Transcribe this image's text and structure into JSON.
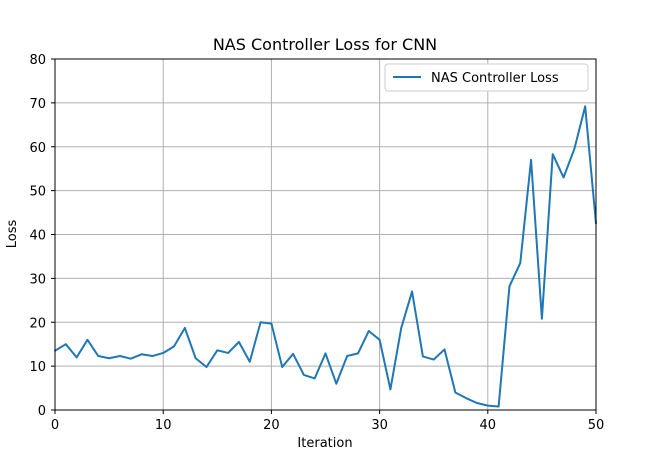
{
  "chart_data": {
    "type": "line",
    "title": "NAS Controller Loss for CNN",
    "xlabel": "Iteration",
    "ylabel": "Loss",
    "xlim": [
      0,
      50
    ],
    "ylim": [
      0,
      80
    ],
    "xticks": [
      0,
      10,
      20,
      30,
      40,
      50
    ],
    "yticks": [
      0,
      10,
      20,
      30,
      40,
      50,
      60,
      70,
      80
    ],
    "grid": true,
    "legend_position": "top-right",
    "series": [
      {
        "name": "NAS Controller Loss",
        "color": "#1f77b4",
        "x": [
          0,
          1,
          2,
          3,
          4,
          5,
          6,
          7,
          8,
          9,
          10,
          11,
          12,
          13,
          14,
          15,
          16,
          17,
          18,
          19,
          20,
          21,
          22,
          23,
          24,
          25,
          26,
          27,
          28,
          29,
          30,
          31,
          32,
          33,
          34,
          35,
          36,
          37,
          38,
          39,
          40,
          41,
          42,
          43,
          44,
          45,
          46,
          47,
          48,
          49,
          50
        ],
        "values": [
          13.5,
          15,
          12,
          16,
          12.3,
          11.8,
          12.3,
          11.7,
          12.7,
          12.3,
          13,
          14.5,
          18.7,
          11.8,
          9.8,
          13.6,
          13,
          15.5,
          11,
          20,
          19.7,
          9.8,
          12.8,
          8,
          7.2,
          12.9,
          6,
          12.3,
          12.9,
          18,
          16,
          4.7,
          18.7,
          27,
          12.2,
          11.5,
          13.8,
          4,
          2.7,
          1.6,
          1,
          0.8,
          28.2,
          33.5,
          57,
          20.8,
          58.3,
          53,
          59.5,
          69.2,
          42.5
        ]
      }
    ]
  }
}
